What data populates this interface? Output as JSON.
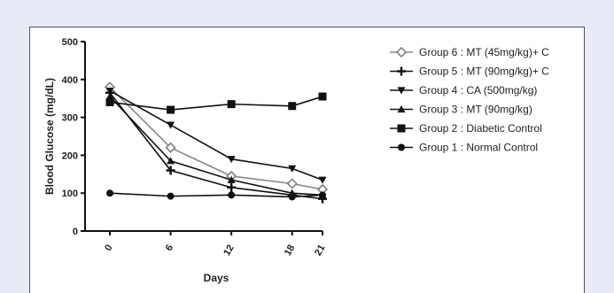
{
  "chart_data": {
    "type": "line",
    "xlabel": "Days",
    "ylabel": "Blood Glucose (mg/dL)",
    "x": [
      0,
      6,
      12,
      18,
      21
    ],
    "x_tick_labels": [
      "0",
      "6",
      "12",
      "18",
      "21"
    ],
    "y_ticks": [
      0,
      100,
      200,
      300,
      400,
      500
    ],
    "y_tick_labels": [
      "0",
      "100",
      "200",
      "300",
      "400",
      "500"
    ],
    "ylim": [
      0,
      500
    ],
    "grid": false,
    "legend_position": "right",
    "series": [
      {
        "name": "Group 6 : MT (45mg/kg)+ C",
        "marker": "diamond-open",
        "values": [
          380,
          220,
          145,
          125,
          110
        ]
      },
      {
        "name": "Group 5 : MT (90mg/kg)+ C",
        "marker": "plus",
        "values": [
          365,
          160,
          115,
          95,
          85
        ]
      },
      {
        "name": "Group 4 : CA (500mg/kg)",
        "marker": "triangle-down",
        "values": [
          370,
          280,
          190,
          165,
          135
        ]
      },
      {
        "name": "Group 3 : MT (90mg/kg)",
        "marker": "triangle-up",
        "values": [
          355,
          185,
          135,
          100,
          95
        ]
      },
      {
        "name": "Group 2 : Diabetic Control",
        "marker": "square",
        "values": [
          340,
          320,
          335,
          330,
          355
        ]
      },
      {
        "name": "Group 1 : Normal Control",
        "marker": "circle",
        "values": [
          100,
          92,
          95,
          90,
          95
        ]
      }
    ]
  }
}
